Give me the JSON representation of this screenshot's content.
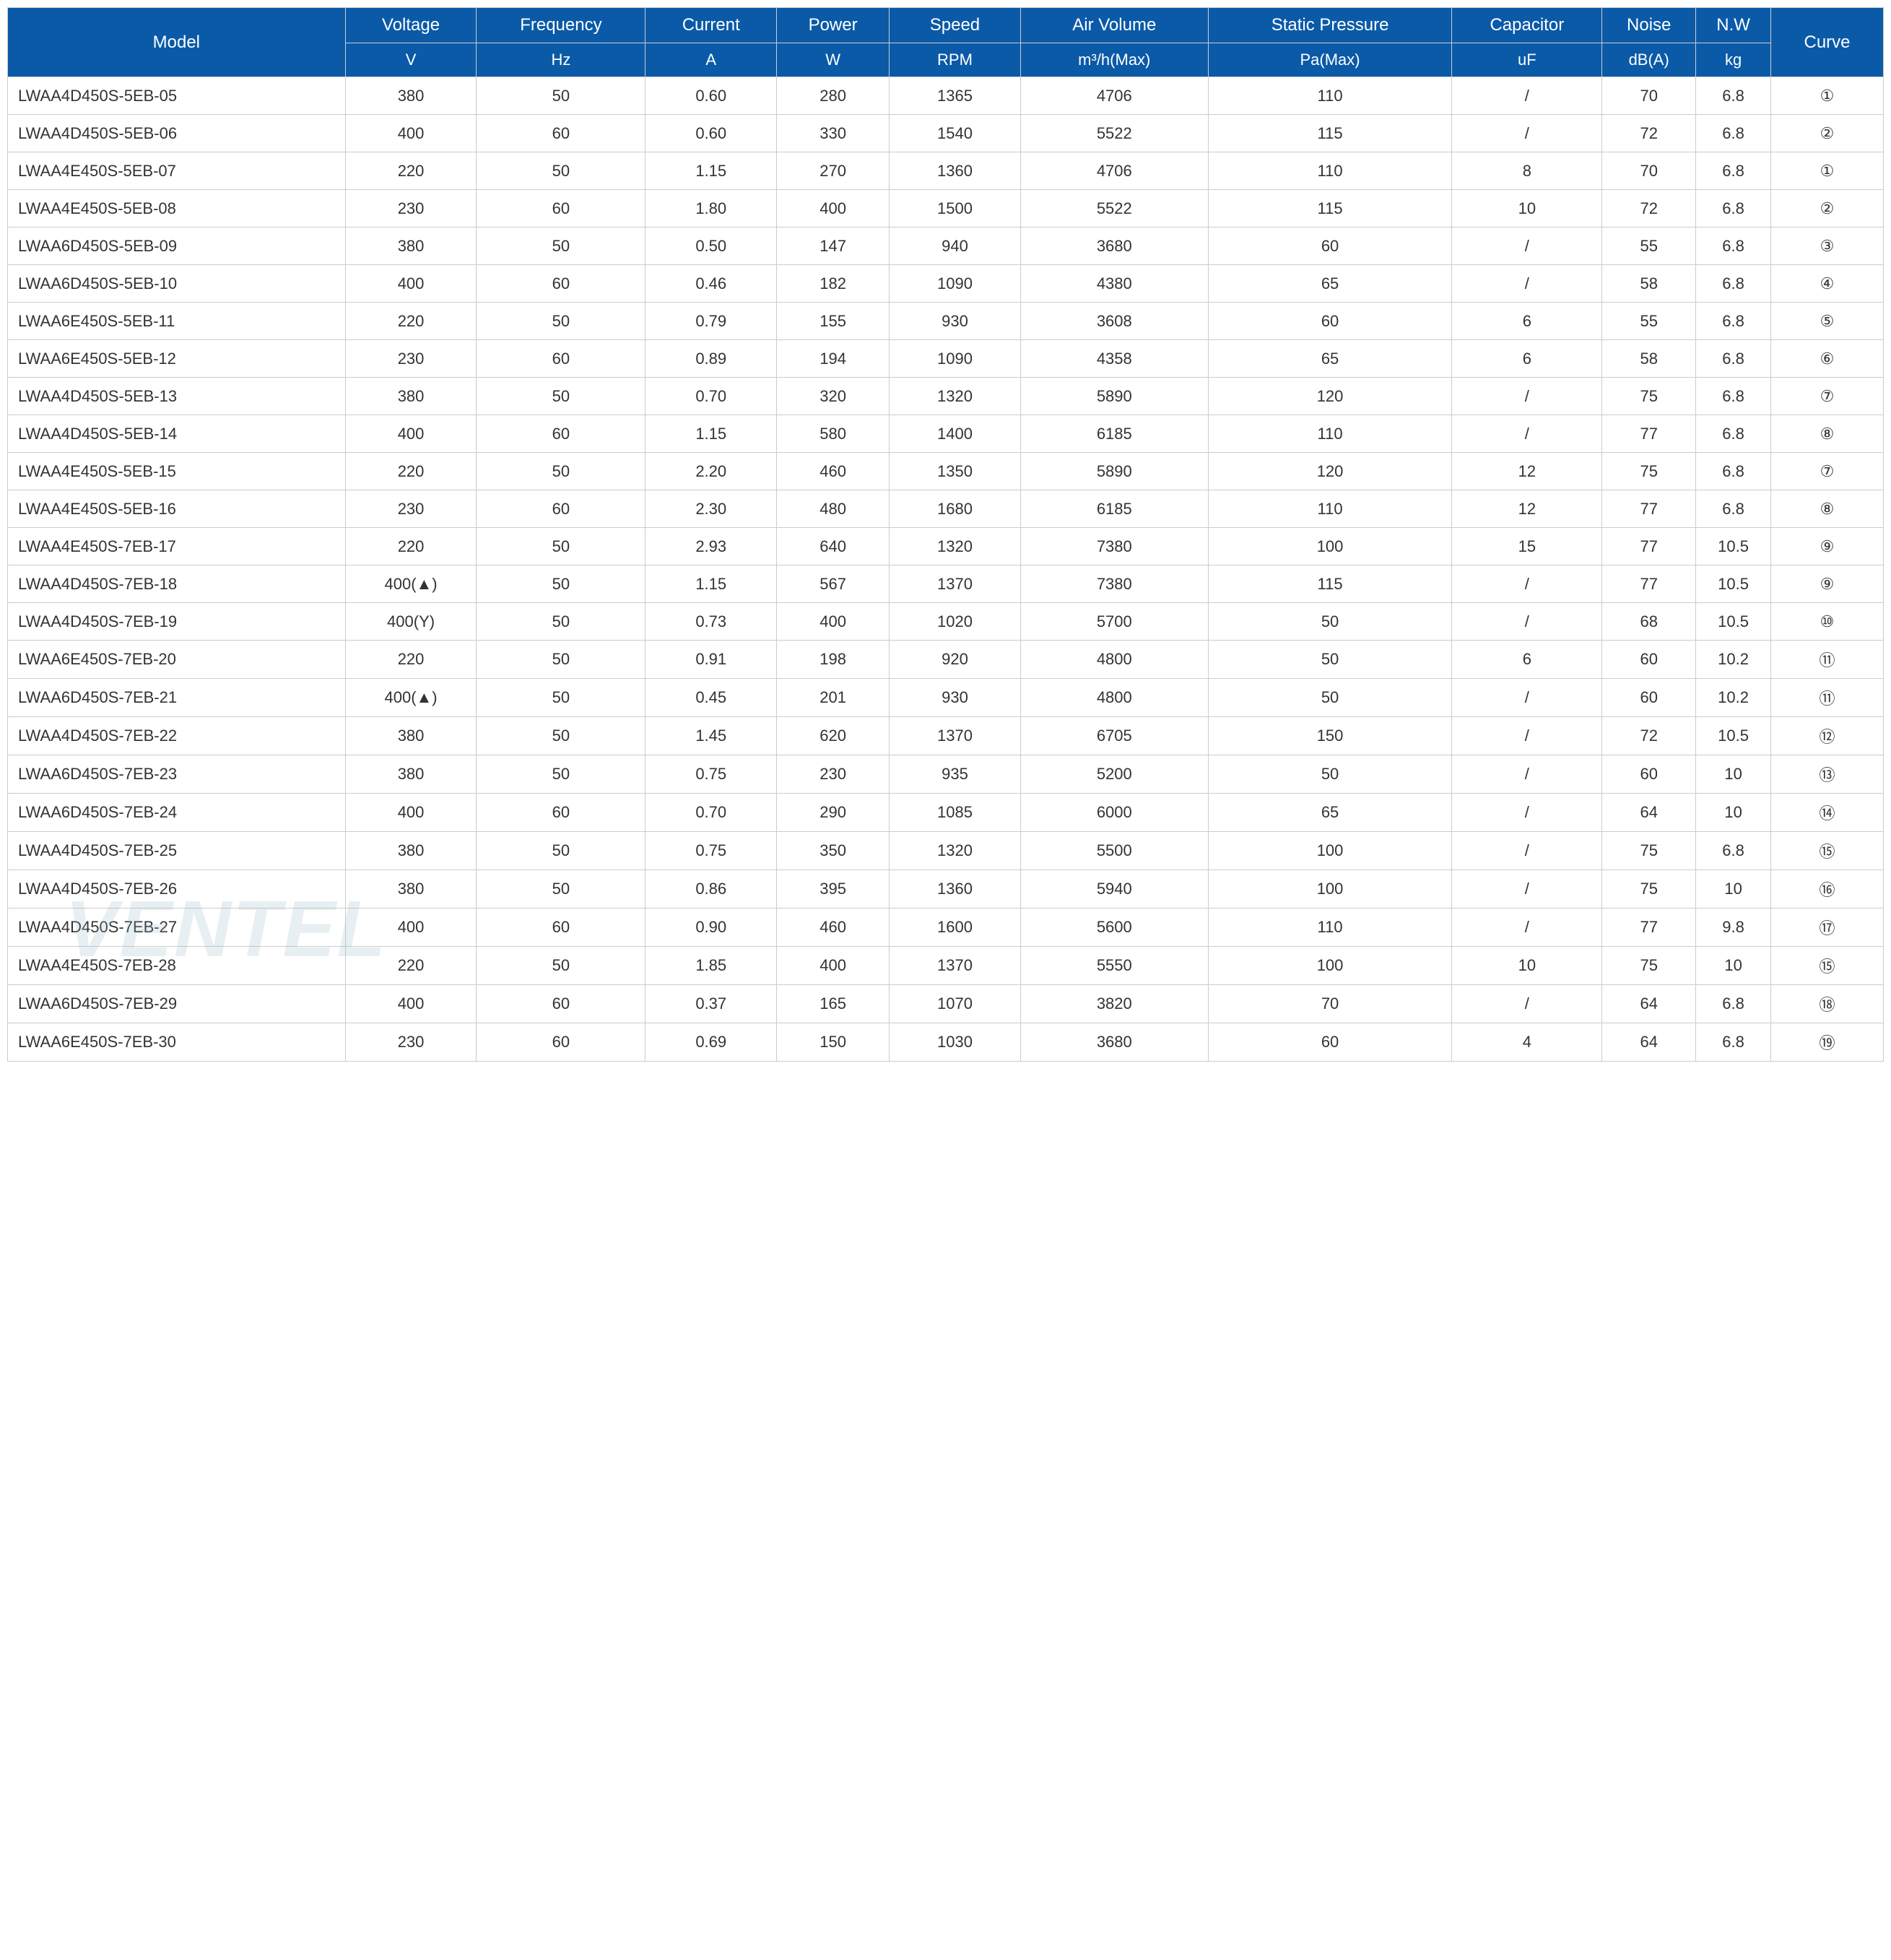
{
  "table": {
    "header_bg": "#0a5aa8",
    "header_text_color": "#ffffff",
    "border_color": "#cccccc",
    "body_text_color": "#333333",
    "font_family": "Arial",
    "header_fontsize": 24,
    "body_fontsize": 22,
    "columns": [
      {
        "label": "Model",
        "unit": "",
        "width": "18%",
        "align": "left"
      },
      {
        "label": "Voltage",
        "unit": "V",
        "width": "7%",
        "align": "center"
      },
      {
        "label": "Frequency",
        "unit": "Hz",
        "width": "9%",
        "align": "center"
      },
      {
        "label": "Current",
        "unit": "A",
        "width": "7%",
        "align": "center"
      },
      {
        "label": "Power",
        "unit": "W",
        "width": "6%",
        "align": "center"
      },
      {
        "label": "Speed",
        "unit": "RPM",
        "width": "7%",
        "align": "center"
      },
      {
        "label": "Air Volume",
        "unit": "m³/h(Max)",
        "width": "10%",
        "align": "center"
      },
      {
        "label": "Static Pressure",
        "unit": "Pa(Max)",
        "width": "13%",
        "align": "center"
      },
      {
        "label": "Capacitor",
        "unit": "uF",
        "width": "8%",
        "align": "center"
      },
      {
        "label": "Noise",
        "unit": "dB(A)",
        "width": "5%",
        "align": "center"
      },
      {
        "label": "N.W",
        "unit": "kg",
        "width": "4%",
        "align": "center"
      },
      {
        "label": "Curve",
        "unit": "",
        "width": "6%",
        "align": "center"
      }
    ],
    "rows": [
      [
        "LWAA4D450S-5EB-05",
        "380",
        "50",
        "0.60",
        "280",
        "1365",
        "4706",
        "110",
        "/",
        "70",
        "6.8",
        "①"
      ],
      [
        "LWAA4D450S-5EB-06",
        "400",
        "60",
        "0.60",
        "330",
        "1540",
        "5522",
        "115",
        "/",
        "72",
        "6.8",
        "②"
      ],
      [
        "LWAA4E450S-5EB-07",
        "220",
        "50",
        "1.15",
        "270",
        "1360",
        "4706",
        "110",
        "8",
        "70",
        "6.8",
        "①"
      ],
      [
        "LWAA4E450S-5EB-08",
        "230",
        "60",
        "1.80",
        "400",
        "1500",
        "5522",
        "115",
        "10",
        "72",
        "6.8",
        "②"
      ],
      [
        "LWAA6D450S-5EB-09",
        "380",
        "50",
        "0.50",
        "147",
        "940",
        "3680",
        "60",
        "/",
        "55",
        "6.8",
        "③"
      ],
      [
        "LWAA6D450S-5EB-10",
        "400",
        "60",
        "0.46",
        "182",
        "1090",
        "4380",
        "65",
        "/",
        "58",
        "6.8",
        "④"
      ],
      [
        "LWAA6E450S-5EB-11",
        "220",
        "50",
        "0.79",
        "155",
        "930",
        "3608",
        "60",
        "6",
        "55",
        "6.8",
        "⑤"
      ],
      [
        "LWAA6E450S-5EB-12",
        "230",
        "60",
        "0.89",
        "194",
        "1090",
        "4358",
        "65",
        "6",
        "58",
        "6.8",
        "⑥"
      ],
      [
        "LWAA4D450S-5EB-13",
        "380",
        "50",
        "0.70",
        "320",
        "1320",
        "5890",
        "120",
        "/",
        "75",
        "6.8",
        "⑦"
      ],
      [
        "LWAA4D450S-5EB-14",
        "400",
        "60",
        "1.15",
        "580",
        "1400",
        "6185",
        "110",
        "/",
        "77",
        "6.8",
        "⑧"
      ],
      [
        "LWAA4E450S-5EB-15",
        "220",
        "50",
        "2.20",
        "460",
        "1350",
        "5890",
        "120",
        "12",
        "75",
        "6.8",
        "⑦"
      ],
      [
        "LWAA4E450S-5EB-16",
        "230",
        "60",
        "2.30",
        "480",
        "1680",
        "6185",
        "110",
        "12",
        "77",
        "6.8",
        "⑧"
      ],
      [
        "LWAA4E450S-7EB-17",
        "220",
        "50",
        "2.93",
        "640",
        "1320",
        "7380",
        "100",
        "15",
        "77",
        "10.5",
        "⑨"
      ],
      [
        "LWAA4D450S-7EB-18",
        "400(▲)",
        "50",
        "1.15",
        "567",
        "1370",
        "7380",
        "115",
        "/",
        "77",
        "10.5",
        "⑨"
      ],
      [
        "LWAA4D450S-7EB-19",
        "400(Y)",
        "50",
        "0.73",
        "400",
        "1020",
        "5700",
        "50",
        "/",
        "68",
        "10.5",
        "⑩"
      ],
      [
        "LWAA6E450S-7EB-20",
        "220",
        "50",
        "0.91",
        "198",
        "920",
        "4800",
        "50",
        "6",
        "60",
        "10.2",
        "⑪"
      ],
      [
        "LWAA6D450S-7EB-21",
        "400(▲)",
        "50",
        "0.45",
        "201",
        "930",
        "4800",
        "50",
        "/",
        "60",
        "10.2",
        "⑪"
      ],
      [
        "LWAA4D450S-7EB-22",
        "380",
        "50",
        "1.45",
        "620",
        "1370",
        "6705",
        "150",
        "/",
        "72",
        "10.5",
        "⑫"
      ],
      [
        "LWAA6D450S-7EB-23",
        "380",
        "50",
        "0.75",
        "230",
        "935",
        "5200",
        "50",
        "/",
        "60",
        "10",
        "⑬"
      ],
      [
        "LWAA6D450S-7EB-24",
        "400",
        "60",
        "0.70",
        "290",
        "1085",
        "6000",
        "65",
        "/",
        "64",
        "10",
        "⑭"
      ],
      [
        "LWAA4D450S-7EB-25",
        "380",
        "50",
        "0.75",
        "350",
        "1320",
        "5500",
        "100",
        "/",
        "75",
        "6.8",
        "⑮"
      ],
      [
        "LWAA4D450S-7EB-26",
        "380",
        "50",
        "0.86",
        "395",
        "1360",
        "5940",
        "100",
        "/",
        "75",
        "10",
        "⑯"
      ],
      [
        "LWAA4D450S-7EB-27",
        "400",
        "60",
        "0.90",
        "460",
        "1600",
        "5600",
        "110",
        "/",
        "77",
        "9.8",
        "⑰"
      ],
      [
        "LWAA4E450S-7EB-28",
        "220",
        "50",
        "1.85",
        "400",
        "1370",
        "5550",
        "100",
        "10",
        "75",
        "10",
        "⑮"
      ],
      [
        "LWAA6D450S-7EB-29",
        "400",
        "60",
        "0.37",
        "165",
        "1070",
        "3820",
        "70",
        "/",
        "64",
        "6.8",
        "⑱"
      ],
      [
        "LWAA6E450S-7EB-30",
        "230",
        "60",
        "0.69",
        "150",
        "1030",
        "3680",
        "60",
        "4",
        "64",
        "6.8",
        "⑲"
      ]
    ]
  },
  "watermark": {
    "text": "VENTEL",
    "color": "rgba(150,180,200,0.22)",
    "fontsize": 110
  }
}
